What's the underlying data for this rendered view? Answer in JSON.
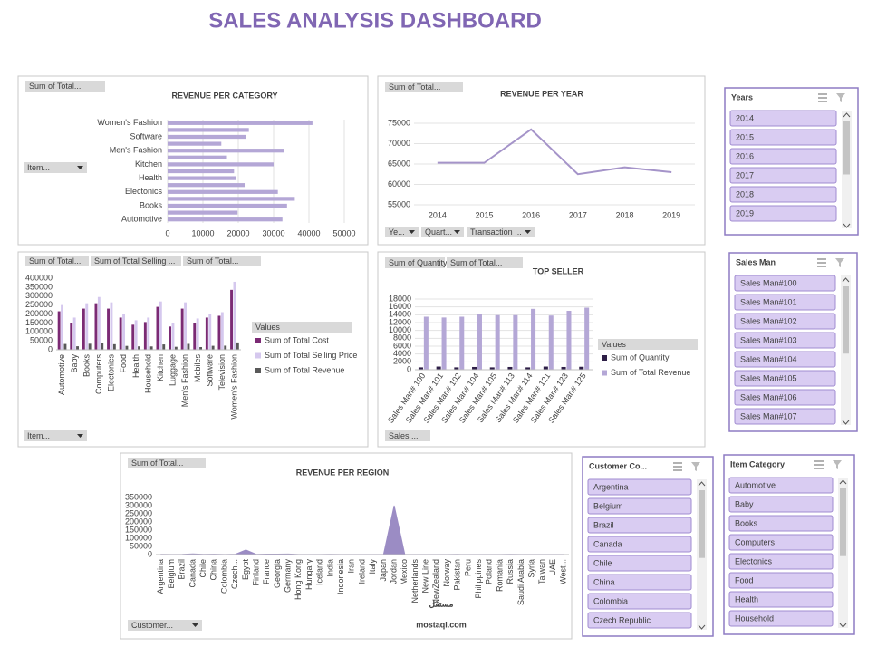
{
  "title": "SALES ANALYSIS DASHBOARD",
  "chart_data": [
    {
      "type": "bar",
      "orientation": "horizontal",
      "title": "REVENUE PER CATEGORY",
      "buttons": [
        "Sum of Total...",
        "Item..."
      ],
      "categories": [
        "Automotive",
        null,
        "Books",
        null,
        "Electonics",
        null,
        "Health",
        null,
        "Kitchen",
        null,
        "Men's Fashion",
        null,
        "Software",
        null,
        "Women's Fashion"
      ],
      "values": [
        32500,
        19800,
        33800,
        36000,
        31200,
        21800,
        19300,
        18800,
        30000,
        16800,
        33000,
        15200,
        22300,
        23000,
        41000
      ],
      "color": "#b4a7d6",
      "xlim": [
        0,
        50000
      ],
      "xticks": [
        0,
        10000,
        20000,
        30000,
        40000,
        50000
      ],
      "grid": true
    },
    {
      "type": "line",
      "title": "REVENUE PER YEAR",
      "buttons": [
        "Sum of Total...",
        "Ye...",
        "Quart...",
        "Transaction ..."
      ],
      "categories": [
        "2014",
        "2015",
        "2016",
        "2017",
        "2018",
        "2019"
      ],
      "values": [
        65300,
        65300,
        73500,
        62500,
        64200,
        63000
      ],
      "color": "#a594c9",
      "ylim": [
        55000,
        75000
      ],
      "yticks": [
        55000,
        60000,
        65000,
        70000,
        75000
      ],
      "grid": true
    },
    {
      "type": "bar",
      "orientation": "vertical",
      "buttons": [
        "Sum of Total...",
        "Sum of Total Selling ...",
        "Sum of Total...",
        "Item..."
      ],
      "categories": [
        "Automotive",
        "Baby",
        "Books",
        "Computers",
        "Electonics",
        "Food",
        "Health",
        "Household",
        "Kitchen",
        "Luggage",
        "Men's Fashion",
        "Mobiles",
        "Software",
        "Television",
        "Women's Fashion"
      ],
      "series": [
        {
          "name": "Sum of Total Cost",
          "color": "#7b2a74",
          "values": [
            215000,
            150000,
            230000,
            260000,
            230000,
            180000,
            140000,
            155000,
            240000,
            130000,
            230000,
            150000,
            180000,
            190000,
            335000
          ]
        },
        {
          "name": "Sum of Total Selling Price",
          "color": "#d5c8ee",
          "values": [
            250000,
            180000,
            260000,
            295000,
            265000,
            200000,
            165000,
            180000,
            270000,
            150000,
            265000,
            175000,
            200000,
            210000,
            380000
          ]
        },
        {
          "name": "Sum of Total Revenue",
          "color": "#595959",
          "values": [
            32500,
            19800,
            33800,
            36000,
            31200,
            21800,
            19300,
            18800,
            30000,
            16800,
            33000,
            15200,
            22300,
            23000,
            41000
          ]
        }
      ],
      "legend_title": "Values",
      "ylim": [
        0,
        400000
      ],
      "yticks": [
        0,
        50000,
        100000,
        150000,
        200000,
        250000,
        300000,
        350000,
        400000
      ],
      "grid": false
    },
    {
      "type": "bar",
      "orientation": "vertical",
      "title": "TOP SELLER",
      "buttons": [
        "Sum of Quantity",
        "Sum of Total...",
        "Sales ..."
      ],
      "categories": [
        "Sales Man# 100",
        "Sales Man# 101",
        "Sales Man# 102",
        "Sales Man# 104",
        "Sales Man# 105",
        "Sales Man# 113",
        "Sales Man# 114",
        "Sales Man# 121",
        "Sales Man# 123",
        "Sales Man# 125"
      ],
      "series": [
        {
          "name": "Sum of Quantity",
          "color": "#2e1f47",
          "values": [
            600,
            800,
            600,
            700,
            600,
            700,
            600,
            800,
            700,
            750
          ]
        },
        {
          "name": "Sum of Total Revenue",
          "color": "#b4a7d6",
          "values": [
            13500,
            13300,
            13500,
            14200,
            13900,
            13900,
            15500,
            13800,
            15000,
            15800
          ]
        }
      ],
      "legend_title": "Values",
      "ylim": [
        0,
        18000
      ],
      "yticks": [
        0,
        2000,
        4000,
        6000,
        8000,
        10000,
        12000,
        14000,
        16000,
        18000
      ],
      "grid": true
    },
    {
      "type": "area",
      "title": "REVENUE PER REGION",
      "buttons": [
        "Sum of Total...",
        "Customer..."
      ],
      "categories": [
        "Argentina",
        "Belgium",
        "Brazil",
        "Canada",
        "Chile",
        "China",
        "Colombia",
        "Czech...",
        "Egypt",
        "Finland",
        "France",
        "Georgia",
        "Germany",
        "Hong Kong",
        "Hungary",
        "Iceland",
        "India",
        "Indonesia",
        "Iran",
        "Ireland",
        "Italy",
        "Japan",
        "Jordan",
        "Mexico",
        "Netherlands",
        "New Line",
        "NewZealand",
        "Norway",
        "Pakistan",
        "Peru",
        "Philippines",
        "Poland",
        "Romania",
        "Russia",
        "Saudi Arabia",
        "Syria",
        "Taiwan",
        "UAE",
        "West..."
      ],
      "values": [
        1200,
        900,
        1500,
        4500,
        1100,
        1800,
        1000,
        1300,
        28000,
        1200,
        3000,
        2500,
        3500,
        1000,
        800,
        900,
        1200,
        1000,
        700,
        800,
        900,
        1500,
        300000,
        1200,
        900,
        800,
        1000,
        900,
        1100,
        800,
        1000,
        900,
        800,
        1200,
        1000,
        800,
        900,
        1000,
        800
      ],
      "color": "#9b8cc4",
      "ylim": [
        0,
        350000
      ],
      "yticks": [
        0,
        50000,
        100000,
        150000,
        200000,
        250000,
        300000,
        350000
      ],
      "grid": false
    }
  ],
  "slicers": [
    {
      "title": "Years",
      "items": [
        "2014",
        "2015",
        "2016",
        "2017",
        "2018",
        "2019"
      ]
    },
    {
      "title": "Sales Man",
      "items": [
        "Sales Man#100",
        "Sales Man#101",
        "Sales Man#102",
        "Sales Man#103",
        "Sales Man#104",
        "Sales Man#105",
        "Sales Man#106",
        "Sales Man#107"
      ]
    },
    {
      "title": "Customer Co...",
      "items": [
        "Argentina",
        "Belgium",
        "Brazil",
        "Canada",
        "Chile",
        "China",
        "Colombia",
        "Czech Republic"
      ]
    },
    {
      "title": "Item Category",
      "items": [
        "Automotive",
        "Baby",
        "Books",
        "Computers",
        "Electonics",
        "Food",
        "Health",
        "Household"
      ]
    }
  ],
  "watermark": {
    "arabic": "مستقل",
    "text": "mostaql.com"
  }
}
